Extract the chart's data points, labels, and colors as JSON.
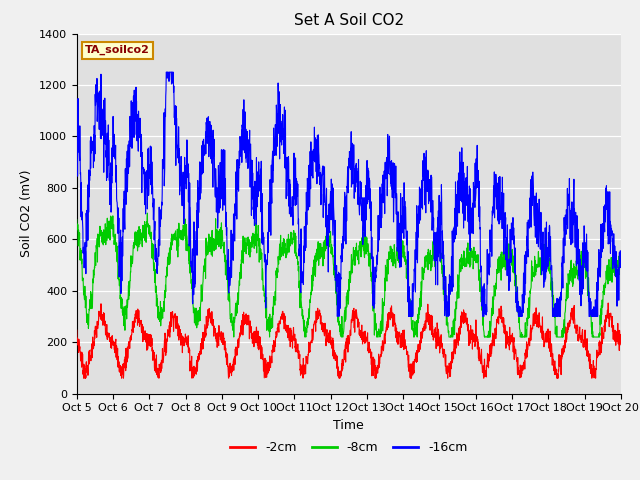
{
  "title": "Set A Soil CO2",
  "ylabel": "Soil CO2 (mV)",
  "xlabel": "Time",
  "ylim": [
    0,
    1400
  ],
  "yticks": [
    0,
    200,
    400,
    600,
    800,
    1000,
    1200,
    1400
  ],
  "xtick_labels": [
    "Oct 5",
    "Oct 6",
    "Oct 7",
    "Oct 8",
    "Oct 9",
    "Oct 10",
    "Oct 11",
    "Oct 12",
    "Oct 13",
    "Oct 14",
    "Oct 15",
    "Oct 16",
    "Oct 17",
    "Oct 18",
    "Oct 19",
    "Oct 20"
  ],
  "line_colors": [
    "#ff0000",
    "#00cc00",
    "#0000ff"
  ],
  "legend_labels": [
    "-2cm",
    "-8cm",
    "-16cm"
  ],
  "sensor_label": "TA_soilco2",
  "fig_facecolor": "#f0f0f0",
  "ax_facecolor": "#e0e0e0",
  "title_fontsize": 11,
  "axis_fontsize": 9,
  "tick_fontsize": 8
}
